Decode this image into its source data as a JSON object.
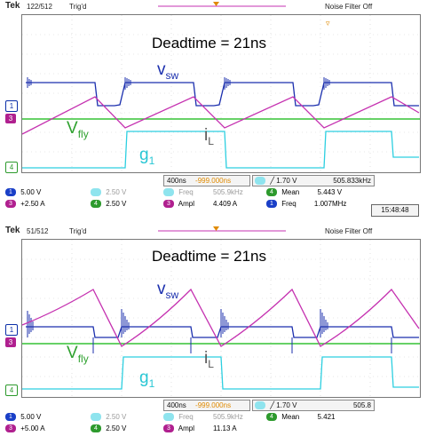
{
  "colors": {
    "vsw": "#1b2fae",
    "il": "#c531b0",
    "vfly": "#35c235",
    "g1": "#2ccfe0",
    "trigger": "#e08a00"
  },
  "panels": [
    {
      "header": {
        "brand": "Tek",
        "acq": "122/512",
        "trigger_mode": "Trig'd",
        "noise_filter": "Noise Filter Off"
      },
      "annotation": "Deadtime = 21ns",
      "labels": {
        "vsw_main": "v",
        "vsw_sub": "sw",
        "vfly_main": "V",
        "vfly_sub": "fly",
        "il_main": "i",
        "il_sub": "L",
        "g1_main": "g",
        "g1_sub": "1"
      },
      "markers": {
        "ch1": "1",
        "ch3": "3",
        "ch4": "4"
      },
      "timebase": {
        "div": "400ns",
        "delay": "-999.000ns",
        "trigger_level": "╱ 1.70 V",
        "trigger_freq": "505.833kHz"
      },
      "channels": [
        {
          "num": "1",
          "scale": "5.00 V",
          "badge": "b1"
        },
        {
          "num": "3",
          "scale": "Ⅱ2.50 A",
          "badge": "b3",
          "display": "+2.50 A"
        },
        {
          "num": "2",
          "scale": "2.50 V",
          "badge": "b2"
        },
        {
          "num": "4",
          "scale": "2.50 V",
          "badge": "b4"
        }
      ],
      "measurements": [
        {
          "ch": "2",
          "name": "Freq",
          "value": "505.9kHz",
          "faded": true
        },
        {
          "ch": "4",
          "name": "Mean",
          "value": "5.443 V",
          "faded": false
        },
        {
          "ch": "3",
          "name": "Ampl",
          "value": "4.409 A",
          "faded": false
        },
        {
          "ch": "1",
          "name": "Freq",
          "value": "1.007MHz",
          "faded": false
        }
      ],
      "clock": "15:48:48"
    },
    {
      "header": {
        "brand": "Tek",
        "acq": "51/512",
        "trigger_mode": "Trig'd",
        "noise_filter": "Noise Filter Off"
      },
      "annotation": "Deadtime = 21ns",
      "labels": {
        "vsw_main": "v",
        "vsw_sub": "sw",
        "vfly_main": "V",
        "vfly_sub": "fly",
        "il_main": "i",
        "il_sub": "L",
        "g1_main": "g",
        "g1_sub": "1"
      },
      "markers": {
        "ch1": "1",
        "ch3": "3",
        "ch4": "4"
      },
      "timebase": {
        "div": "400ns",
        "delay": "-999.000ns",
        "trigger_level": "╱ 1.70 V",
        "trigger_freq": "505.8"
      },
      "channels": [
        {
          "num": "1",
          "scale": "5.00 V",
          "badge": "b1"
        },
        {
          "num": "3",
          "scale": "+5.00 A",
          "badge": "b3"
        },
        {
          "num": "2",
          "scale": "2.50 V",
          "badge": "b2"
        },
        {
          "num": "4",
          "scale": "2.50 V",
          "badge": "b4"
        }
      ],
      "measurements": [
        {
          "ch": "2",
          "name": "Freq",
          "value": "505.9kHz",
          "faded": true
        },
        {
          "ch": "4",
          "name": "Mean",
          "value": "5.421",
          "faded": false
        },
        {
          "ch": "3",
          "name": "Ampl",
          "value": "11.13 A",
          "faded": false
        }
      ]
    }
  ]
}
